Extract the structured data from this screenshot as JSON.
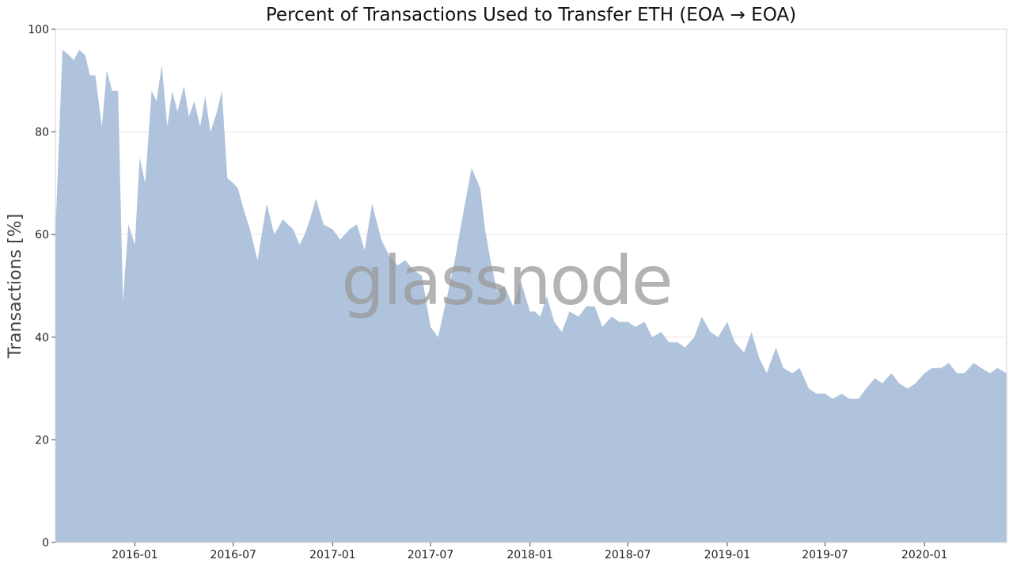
{
  "watermark": "glassnode",
  "colors": {
    "area": "#b0c3dd",
    "grid": "#e6e6e6",
    "axis": "#d0d0d0"
  },
  "chart_data": {
    "type": "area",
    "title": "Percent of Transactions Used to Transfer ETH (EOA → EOA)",
    "xlabel": "",
    "ylabel": "Transactions [%]",
    "ylim": [
      0,
      100
    ],
    "xlim": [
      "2015-08-07",
      "2020-06-01"
    ],
    "yticks": [
      0,
      20,
      40,
      60,
      80,
      100
    ],
    "xticks": [
      "2016-01",
      "2016-07",
      "2017-01",
      "2017-07",
      "2018-01",
      "2018-07",
      "2019-01",
      "2019-07",
      "2020-01"
    ],
    "grid": true,
    "series": [
      {
        "x": [
          "2015-08-07",
          "2015-08-20",
          "2015-09-01",
          "2015-09-10",
          "2015-09-20",
          "2015-10-01",
          "2015-10-10",
          "2015-10-20",
          "2015-11-01",
          "2015-11-10",
          "2015-11-20",
          "2015-12-01",
          "2015-12-10",
          "2015-12-20",
          "2016-01-01",
          "2016-01-10",
          "2016-01-20",
          "2016-02-01",
          "2016-02-10",
          "2016-02-20",
          "2016-03-01",
          "2016-03-10",
          "2016-03-20",
          "2016-04-01",
          "2016-04-10",
          "2016-04-20",
          "2016-05-01",
          "2016-05-10",
          "2016-05-20",
          "2016-06-01",
          "2016-06-10",
          "2016-06-20",
          "2016-07-01",
          "2016-07-10",
          "2016-07-20",
          "2016-08-01",
          "2016-08-15",
          "2016-09-01",
          "2016-09-15",
          "2016-10-01",
          "2016-10-10",
          "2016-10-20",
          "2016-11-01",
          "2016-11-10",
          "2016-11-20",
          "2016-12-01",
          "2016-12-15",
          "2017-01-01",
          "2017-01-15",
          "2017-02-01",
          "2017-02-15",
          "2017-03-01",
          "2017-03-15",
          "2017-04-01",
          "2017-04-15",
          "2017-05-01",
          "2017-05-15",
          "2017-06-01",
          "2017-06-15",
          "2017-07-01",
          "2017-07-15",
          "2017-08-01",
          "2017-08-15",
          "2017-09-01",
          "2017-09-15",
          "2017-10-01",
          "2017-10-10",
          "2017-10-20",
          "2017-11-01",
          "2017-11-15",
          "2017-12-01",
          "2017-12-15",
          "2018-01-01",
          "2018-01-10",
          "2018-01-20",
          "2018-02-01",
          "2018-02-15",
          "2018-03-01",
          "2018-03-15",
          "2018-04-01",
          "2018-04-15",
          "2018-05-01",
          "2018-05-15",
          "2018-06-01",
          "2018-06-15",
          "2018-07-01",
          "2018-07-15",
          "2018-08-01",
          "2018-08-15",
          "2018-09-01",
          "2018-09-15",
          "2018-10-01",
          "2018-10-15",
          "2018-11-01",
          "2018-11-15",
          "2018-12-01",
          "2018-12-15",
          "2019-01-01",
          "2019-01-15",
          "2019-02-01",
          "2019-02-15",
          "2019-03-01",
          "2019-03-15",
          "2019-04-01",
          "2019-04-15",
          "2019-05-01",
          "2019-05-15",
          "2019-06-01",
          "2019-06-15",
          "2019-07-01",
          "2019-07-15",
          "2019-08-01",
          "2019-08-15",
          "2019-09-01",
          "2019-09-15",
          "2019-10-01",
          "2019-10-15",
          "2019-11-01",
          "2019-11-15",
          "2019-12-01",
          "2019-12-15",
          "2020-01-01",
          "2020-01-15",
          "2020-02-01",
          "2020-02-15",
          "2020-03-01",
          "2020-03-15",
          "2020-04-01",
          "2020-04-15",
          "2020-05-01",
          "2020-05-15",
          "2020-06-01"
        ],
        "values": [
          60,
          96,
          95,
          94,
          96,
          95,
          91,
          91,
          81,
          92,
          88,
          88,
          47,
          62,
          58,
          75,
          70,
          88,
          86,
          93,
          81,
          88,
          84,
          89,
          83,
          86,
          81,
          87,
          80,
          84,
          88,
          71,
          70,
          69,
          65,
          61,
          55,
          66,
          60,
          63,
          62,
          61,
          58,
          60,
          63,
          67,
          62,
          61,
          59,
          61,
          62,
          57,
          66,
          59,
          56,
          54,
          55,
          53,
          52,
          42,
          40,
          48,
          55,
          65,
          73,
          69,
          61,
          55,
          49,
          50,
          46,
          51,
          45,
          45,
          44,
          48,
          43,
          41,
          45,
          44,
          46,
          46,
          42,
          44,
          43,
          43,
          42,
          43,
          40,
          41,
          39,
          39,
          38,
          40,
          44,
          41,
          40,
          43,
          39,
          37,
          41,
          36,
          33,
          38,
          34,
          33,
          34,
          30,
          29,
          29,
          28,
          29,
          28,
          28,
          30,
          32,
          31,
          33,
          31,
          30,
          31,
          33,
          34,
          34,
          35,
          33,
          33,
          35,
          34,
          33,
          34,
          33
        ],
        "note_x_fix": ""
      }
    ]
  }
}
